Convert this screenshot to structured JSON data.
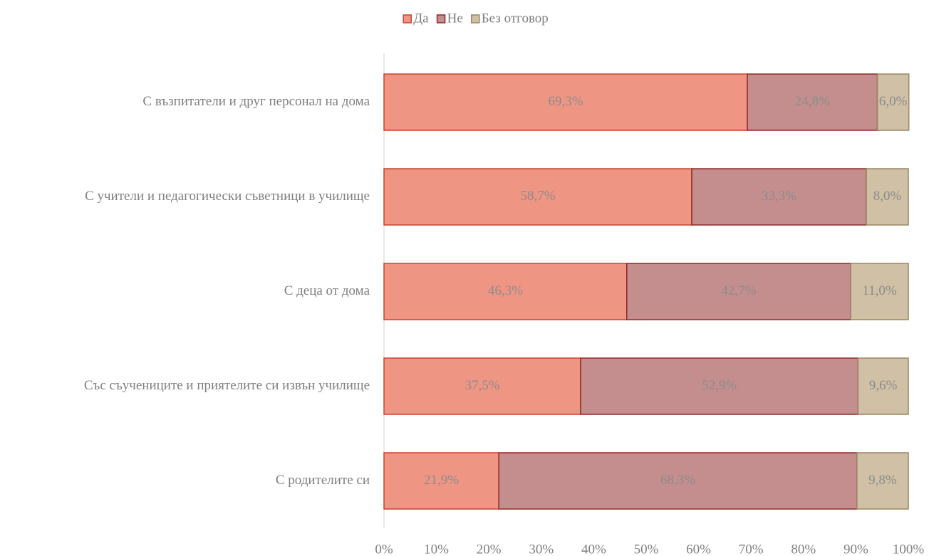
{
  "chart_data": {
    "type": "stacked_bar_horizontal",
    "categories": [
      "С възпитатели и друг персонал на дома",
      "С учители и педагогически съветници в училище",
      "С деца от дома",
      "Със съучениците и приятелите си извън училище",
      "С родителите си"
    ],
    "series": [
      {
        "name": "Да",
        "color": "#ef9584",
        "stroke": "#c8442e",
        "values": [
          69.3,
          58.7,
          46.3,
          37.5,
          21.9
        ],
        "value_labels": [
          "69,3%",
          "58,7%",
          "46,3%",
          "37,5%",
          "21,9%"
        ]
      },
      {
        "name": "Не",
        "color": "#c48e8e",
        "stroke": "#8e2a26",
        "values": [
          24.8,
          33.3,
          42.7,
          52.9,
          68.3
        ],
        "value_labels": [
          "24,8%",
          "33,3%",
          "42,7%",
          "52,9%",
          "68,3%"
        ]
      },
      {
        "name": "Без отговор",
        "color": "#cfc0a6",
        "stroke": "#9a8661",
        "values": [
          6.0,
          8.0,
          11.0,
          9.6,
          9.8
        ],
        "value_labels": [
          "6,0%",
          "8,0%",
          "11,0%",
          "9,6%",
          "9,8%"
        ]
      }
    ],
    "xlim": [
      0,
      100
    ],
    "xticks": [
      {
        "value": 0,
        "label": "0%"
      },
      {
        "value": 10,
        "label": "10%"
      },
      {
        "value": 20,
        "label": "20%"
      },
      {
        "value": 30,
        "label": "30%"
      },
      {
        "value": 40,
        "label": "40%"
      },
      {
        "value": 50,
        "label": "50%"
      },
      {
        "value": 60,
        "label": "60%"
      },
      {
        "value": 70,
        "label": "70%"
      },
      {
        "value": 80,
        "label": "80%"
      },
      {
        "value": 90,
        "label": "90%"
      },
      {
        "value": 100,
        "label": "100%"
      }
    ],
    "legend": "top"
  }
}
